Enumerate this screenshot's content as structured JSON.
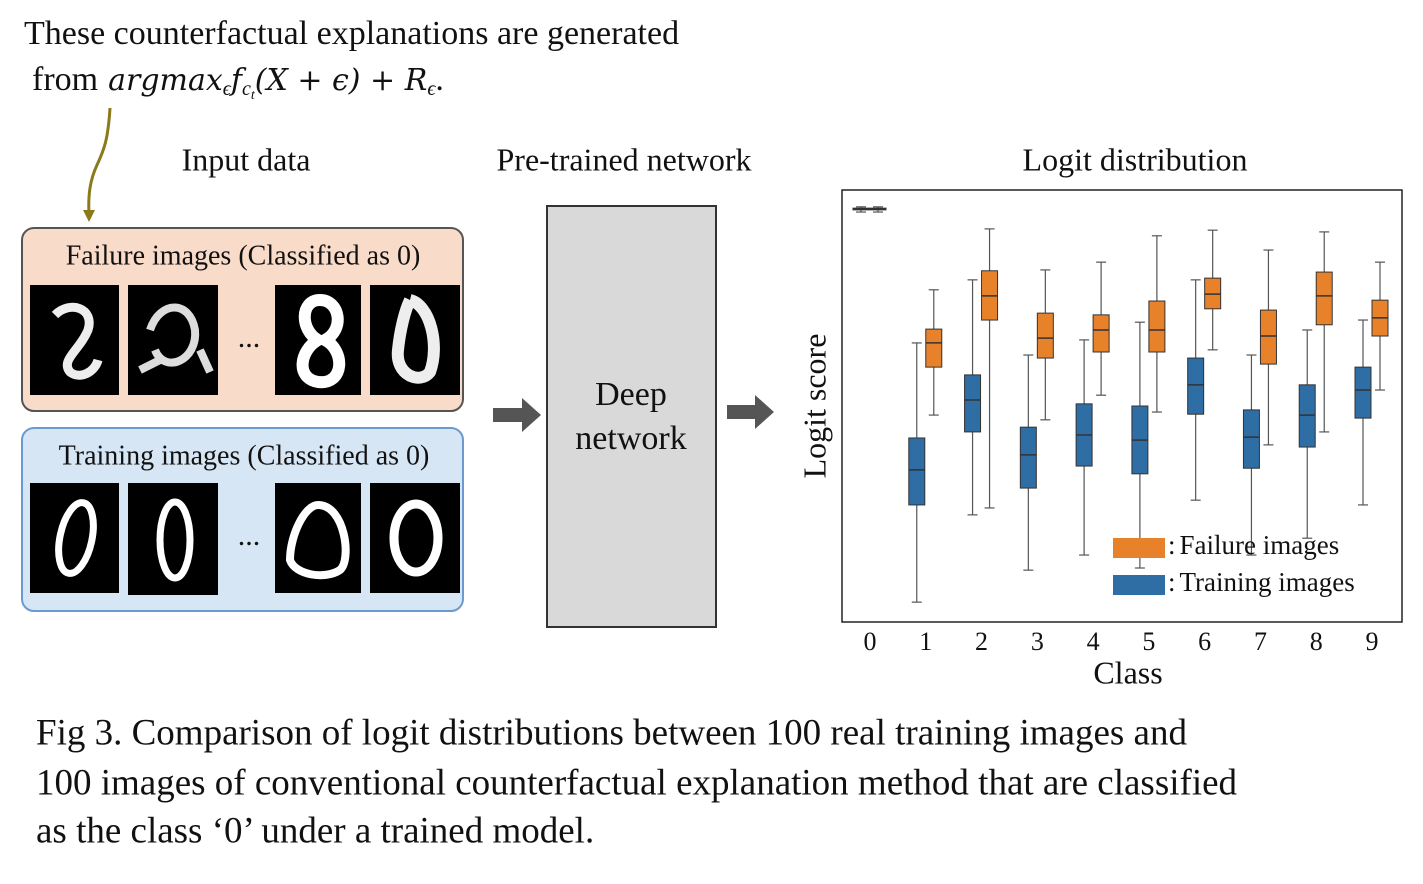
{
  "annotation": {
    "line1": "These counterfactual explanations are generated",
    "prefix": "from",
    "formula": {
      "op": "argmax",
      "op_sub": "ϵ",
      "func": "f",
      "func_sub": "c",
      "func_subsub": "t",
      "args": "(X + ϵ) + R",
      "reg_sub": "ϵ",
      "end": "."
    }
  },
  "input_data": {
    "title": "Input data",
    "failure_label": "Failure images (Classified as 0)",
    "training_label": "Training images (Classified as 0)",
    "ellipsis": "..."
  },
  "network": {
    "title": "Pre-trained network",
    "box_lines": [
      "Deep",
      "network"
    ]
  },
  "chart_data": {
    "type": "box",
    "title": "Logit distribution",
    "xlabel": "Class",
    "ylabel": "Logit score",
    "categories": [
      "0",
      "1",
      "2",
      "3",
      "4",
      "5",
      "6",
      "7",
      "8",
      "9"
    ],
    "ylim": [
      0,
      100
    ],
    "legend_separator": ":",
    "series": [
      {
        "name": "Failure images",
        "color": "#e8822a",
        "min": [
          94.9,
          47.9,
          26.4,
          46.8,
          52.5,
          48.6,
          63.0,
          41.0,
          44.0,
          53.7
        ],
        "q1": [
          95.4,
          59.0,
          69.9,
          61.1,
          62.5,
          62.5,
          72.5,
          59.7,
          68.8,
          66.2
        ],
        "median": [
          95.6,
          64.6,
          75.5,
          65.7,
          67.6,
          67.6,
          75.9,
          66.2,
          75.5,
          70.4
        ],
        "q3": [
          95.8,
          67.8,
          81.3,
          71.5,
          71.1,
          74.3,
          79.6,
          72.2,
          81.0,
          74.5
        ],
        "max": [
          96.1,
          76.9,
          91.0,
          81.5,
          83.3,
          89.4,
          90.7,
          86.1,
          90.3,
          83.3
        ]
      },
      {
        "name": "Training images",
        "color": "#2e6ea4",
        "min": [
          94.9,
          4.6,
          24.8,
          12.0,
          15.5,
          12.5,
          28.2,
          15.5,
          19.4,
          27.1
        ],
        "q1": [
          95.4,
          27.1,
          44.0,
          31.0,
          36.1,
          34.3,
          48.1,
          35.6,
          40.5,
          47.2
        ],
        "median": [
          95.6,
          35.2,
          51.4,
          38.7,
          43.3,
          42.1,
          54.9,
          42.8,
          47.9,
          53.7
        ],
        "q3": [
          95.8,
          42.6,
          57.2,
          45.1,
          50.5,
          50.0,
          61.1,
          49.1,
          54.9,
          59.0
        ],
        "max": [
          96.1,
          64.6,
          79.2,
          61.8,
          65.3,
          69.4,
          79.2,
          61.8,
          67.6,
          69.9
        ]
      }
    ]
  },
  "caption": {
    "lines": [
      "Fig 3. Comparison of logit distributions between 100 real training images and",
      "100 images of conventional counterfactual explanation method that are classified",
      "as the class ‘0’ under a trained model."
    ]
  }
}
